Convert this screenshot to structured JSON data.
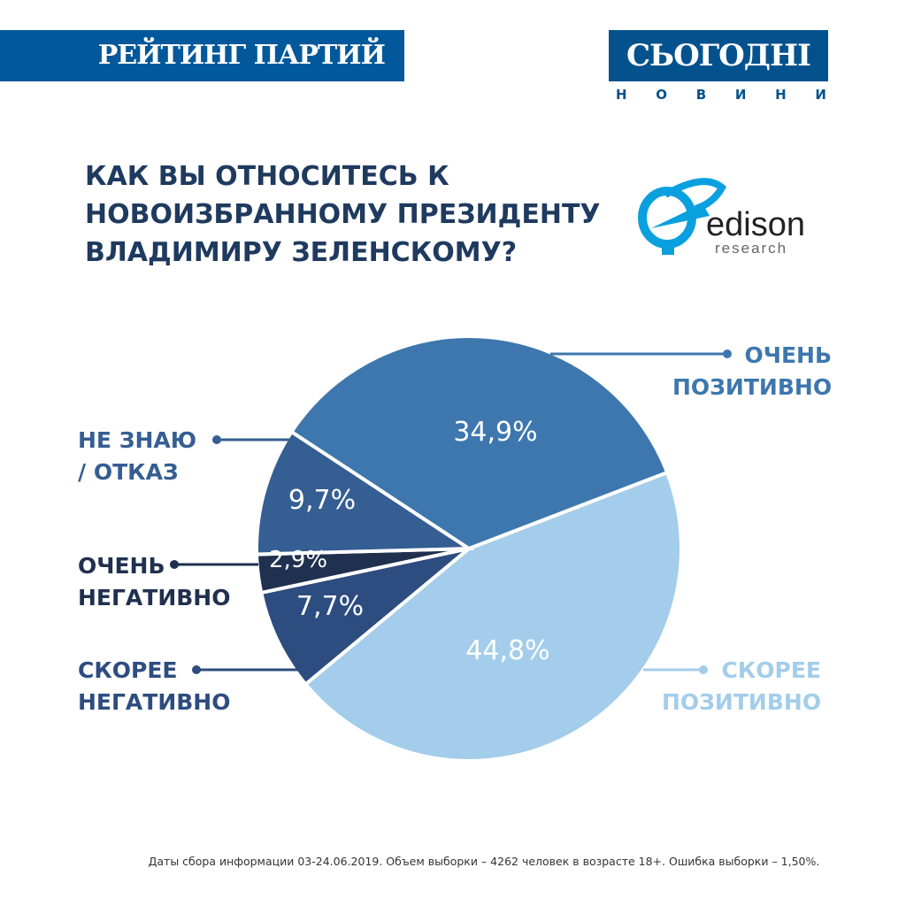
{
  "header": {
    "banner": "РЕЙТИНГ ПАРТИЙ",
    "logo": "СЬОГОДНІ",
    "logo_sub": [
      "Н",
      "О",
      "В",
      "И",
      "Н",
      "И"
    ]
  },
  "edison_logo": {
    "name": "edison",
    "sub": "research"
  },
  "colors": {
    "title": "#1f3a5f",
    "banner": "#02589a"
  },
  "chart_data": {
    "type": "pie",
    "title": "КАК ВЫ ОТНОСИТЕСЬ К НОВОИЗБРАННОМУ ПРЕЗИДЕНТУ ВЛАДИМИРУ ЗЕЛЕНСКОМУ?",
    "title_lines": [
      "КАК ВЫ ОТНОСИТЕСЬ К",
      "НОВОИЗБРАННОМУ ПРЕЗИДЕНТУ",
      "ВЛАДИМИРУ ЗЕЛЕНСКОМУ?"
    ],
    "start_angle_deg": -21,
    "slices": [
      {
        "label": [
          "СКОРЕЕ",
          "ПОЗИТИВНО"
        ],
        "value": 44.8,
        "text": "44,8%",
        "color": "#a3cdea"
      },
      {
        "label": [
          "СКОРЕЕ",
          "НЕГАТИВНО"
        ],
        "value": 7.7,
        "text": "7,7%",
        "color": "#2d4c80"
      },
      {
        "label": [
          "ОЧЕНЬ",
          "НЕГАТИВНО"
        ],
        "value": 2.9,
        "text": "2,9%",
        "color": "#20304f"
      },
      {
        "label": [
          "НЕ ЗНАЮ",
          "/ ОТКАЗ"
        ],
        "value": 9.7,
        "text": "9,7%",
        "color": "#355e92"
      },
      {
        "label": [
          "ОЧЕНЬ",
          "ПОЗИТИВНО"
        ],
        "value": 34.9,
        "text": "34,9%",
        "color": "#3d77ae"
      }
    ]
  },
  "footer": "Даты сбора информации 03-24.06.2019. Объем выборки – 4262 человек в возрасте 18+. Ошибка выборки – 1,50%."
}
